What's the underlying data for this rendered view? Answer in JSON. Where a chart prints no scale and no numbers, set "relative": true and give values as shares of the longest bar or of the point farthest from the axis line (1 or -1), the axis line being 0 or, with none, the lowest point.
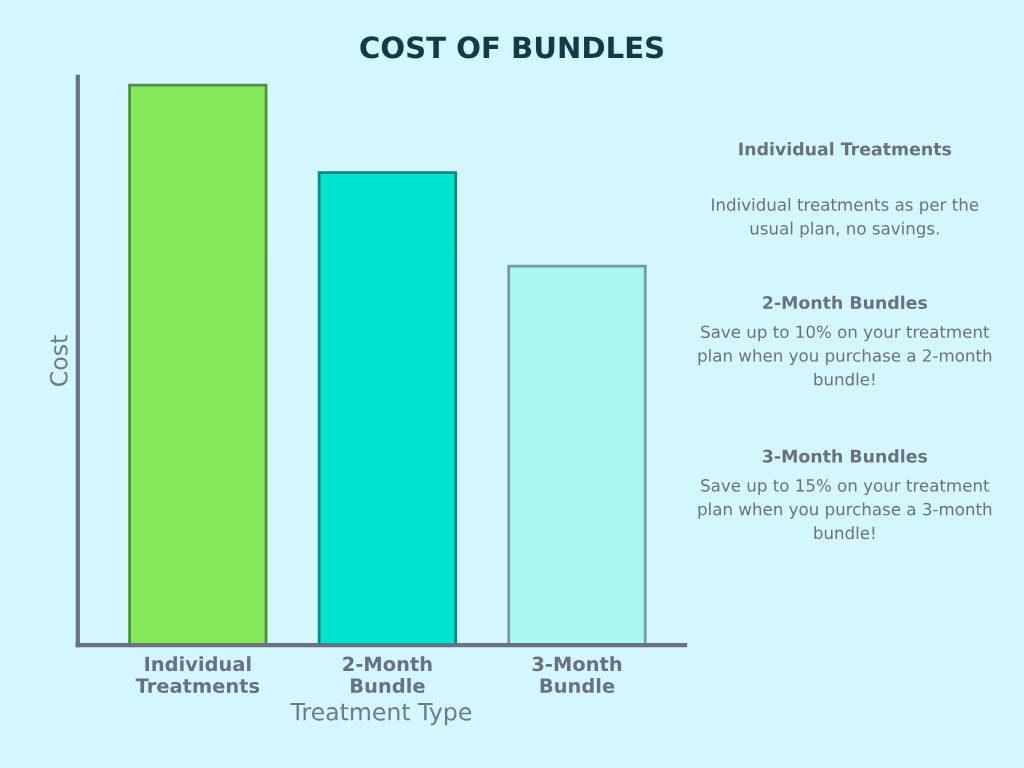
{
  "chart_data": {
    "type": "bar",
    "title": "COST OF BUNDLES",
    "xlabel": "Treatment Type",
    "ylabel": "Cost",
    "relative": true,
    "categories": [
      "Individual\nTreatments",
      "2-Month\nBundle",
      "3-Month\nBundle"
    ],
    "values": [
      1,
      0.844,
      0.677
    ],
    "colors": [
      "#86e85a",
      "#00e5d0",
      "#aaf7ef"
    ],
    "grid": false,
    "legend": false,
    "annotations": [
      "Individual Treatments",
      "Individual treatments as per the usual plan, no savings.",
      "2-Month Bundles",
      "Save up to 10% on your treatment plan when you purchase a 2-month bundle!",
      "3-Month Bundles",
      "Save up to 15% on your treatment plan when you purchase a 3-month bundle!"
    ]
  }
}
